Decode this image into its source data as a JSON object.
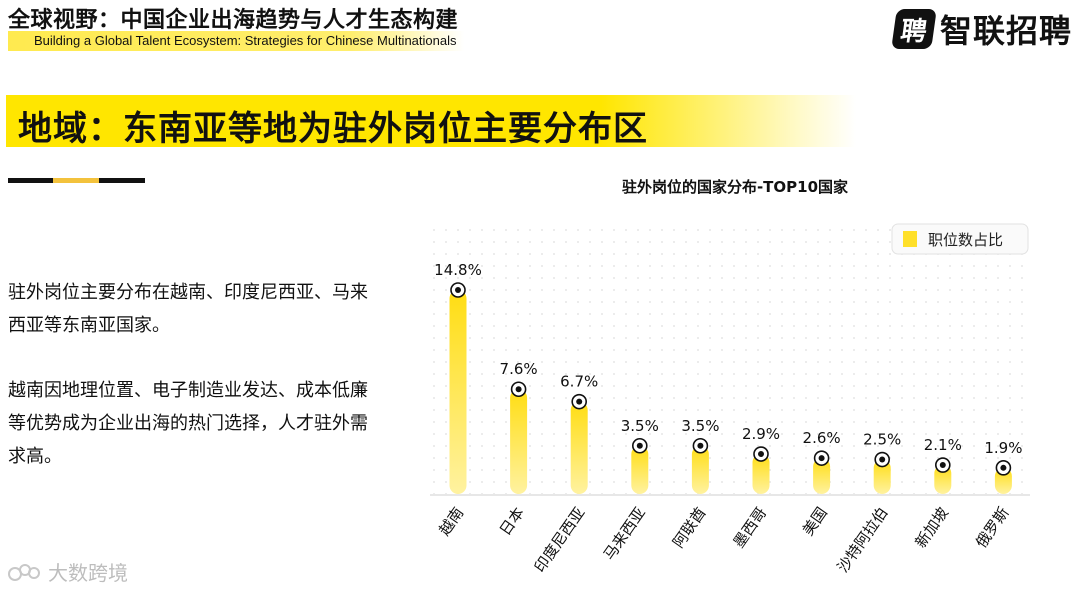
{
  "header": {
    "title": "全球视野：中国企业出海趋势与人才生态构建",
    "subtitle": "Building a Global Talent Ecosystem: Strategies for Chinese Multinationals"
  },
  "logo": {
    "mark": "聘",
    "text": "智联招聘",
    "icon": "zhilian-logo-icon"
  },
  "banner": {
    "title": "地域：东南亚等地为驻外岗位主要分布区"
  },
  "body": {
    "para1": "驻外岗位主要分布在越南、印度尼西亚、马来西亚等东南亚国家。",
    "para2": "越南因地理位置、电子制造业发达、成本低廉等优势成为企业出海的热门选择，人才驻外需求高。"
  },
  "watermark": {
    "text": "大数跨境",
    "icon": "watermark-icon"
  },
  "colors": {
    "accent": "#ffe600",
    "bar_top": "#ffde1a",
    "bar_bottom": "#fff3a0",
    "text": "#111111"
  },
  "chart_data": {
    "type": "bar",
    "title": "驻外岗位的国家分布-TOP10国家",
    "categories": [
      "越南",
      "日本",
      "印度尼西亚",
      "马来西亚",
      "阿联酋",
      "墨西哥",
      "美国",
      "沙特阿拉伯",
      "新加坡",
      "俄罗斯"
    ],
    "series": [
      {
        "name": "职位数占比",
        "values": [
          14.8,
          7.6,
          6.7,
          3.5,
          3.5,
          2.9,
          2.6,
          2.5,
          2.1,
          1.9
        ]
      }
    ],
    "labels": [
      "14.8%",
      "7.6%",
      "6.7%",
      "3.5%",
      "3.5%",
      "2.9%",
      "2.6%",
      "2.5%",
      "2.1%",
      "1.9%"
    ],
    "ylim": [
      0,
      14.8
    ],
    "grid": true,
    "legend": "top-right"
  }
}
